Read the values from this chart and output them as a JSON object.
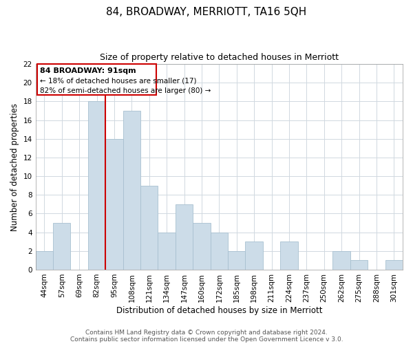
{
  "title": "84, BROADWAY, MERRIOTT, TA16 5QH",
  "subtitle": "Size of property relative to detached houses in Merriott",
  "xlabel": "Distribution of detached houses by size in Merriott",
  "ylabel": "Number of detached properties",
  "bin_labels": [
    "44sqm",
    "57sqm",
    "69sqm",
    "82sqm",
    "95sqm",
    "108sqm",
    "121sqm",
    "134sqm",
    "147sqm",
    "160sqm",
    "172sqm",
    "185sqm",
    "198sqm",
    "211sqm",
    "224sqm",
    "237sqm",
    "250sqm",
    "262sqm",
    "275sqm",
    "288sqm",
    "301sqm"
  ],
  "bar_values": [
    2,
    5,
    0,
    18,
    14,
    17,
    9,
    4,
    7,
    5,
    4,
    2,
    3,
    0,
    3,
    0,
    0,
    2,
    1,
    0,
    1
  ],
  "bar_color": "#ccdce8",
  "bar_edge_color": "#a8c0d0",
  "vline_color": "#cc0000",
  "vline_index": 3.5,
  "ylim": [
    0,
    22
  ],
  "yticks": [
    0,
    2,
    4,
    6,
    8,
    10,
    12,
    14,
    16,
    18,
    20,
    22
  ],
  "annotation_title": "84 BROADWAY: 91sqm",
  "annotation_line1": "← 18% of detached houses are smaller (17)",
  "annotation_line2": "82% of semi-detached houses are larger (80) →",
  "annotation_box_color": "#ffffff",
  "annotation_box_edge": "#cc0000",
  "footer_line1": "Contains HM Land Registry data © Crown copyright and database right 2024.",
  "footer_line2": "Contains public sector information licensed under the Open Government Licence v 3.0.",
  "background_color": "#ffffff",
  "grid_color": "#d0d8e0",
  "title_fontsize": 11,
  "subtitle_fontsize": 9,
  "axis_label_fontsize": 8.5,
  "tick_fontsize": 7.5,
  "footer_fontsize": 6.5
}
